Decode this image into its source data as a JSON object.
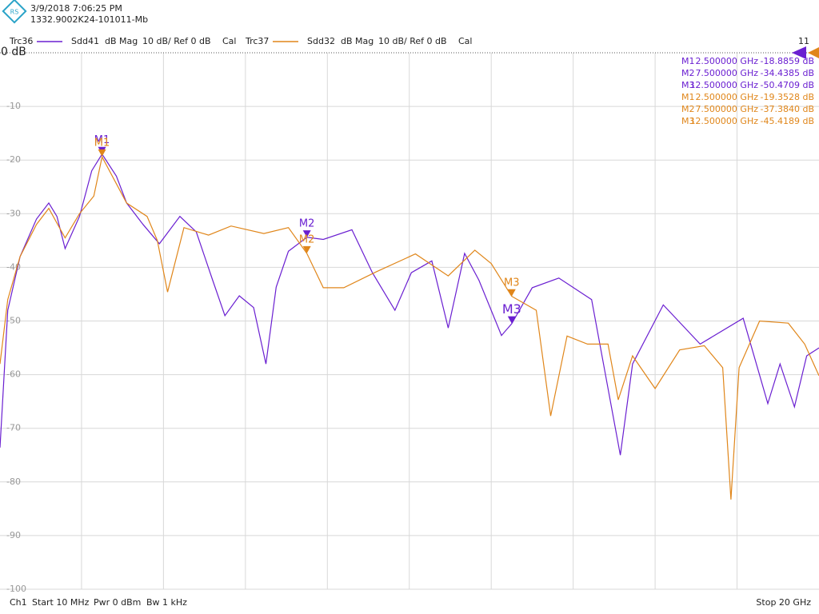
{
  "header": {
    "timestamp": "3/9/2018 7:06:25 PM",
    "device_id": "1332.9002K24-101011-Mb",
    "channel_count": "11"
  },
  "chart_data": {
    "type": "line",
    "xlim": [
      0.01,
      20
    ],
    "xticks": [
      2,
      4,
      6,
      8,
      10,
      12,
      14,
      16,
      18
    ],
    "ylim": [
      -100,
      0
    ],
    "yticks": [
      {
        "value": 0,
        "label": "0 dB"
      },
      -10,
      -20,
      -30,
      -40,
      -50,
      -60,
      -70,
      -80,
      -90,
      -100
    ],
    "grid": true,
    "series": [
      {
        "trace": "Trc36",
        "name": "Sdd41",
        "format": "dB Mag",
        "scale": "10 dB/ Ref 0 dB",
        "cal": "Cal",
        "color": "#6a1fd1",
        "x": [
          0.01,
          0.2,
          0.5,
          0.9,
          1.2,
          1.4,
          1.6,
          1.95,
          2.25,
          2.5,
          2.85,
          3.1,
          3.5,
          3.9,
          4.4,
          4.8,
          5.2,
          5.5,
          5.85,
          6.2,
          6.5,
          6.75,
          7.05,
          7.5,
          7.9,
          8.6,
          9.1,
          9.65,
          10.05,
          10.55,
          10.95,
          11.35,
          11.7,
          12.25,
          12.5,
          13,
          13.65,
          14.45,
          15.15,
          15.45,
          16.2,
          17.1,
          18.15,
          18.75,
          19.05,
          19.4,
          19.7,
          20
        ],
        "values": [
          -73.6,
          -48,
          -38,
          -31,
          -28,
          -30.5,
          -36.5,
          -30.5,
          -22,
          -18.9,
          -23,
          -28,
          -32,
          -35.6,
          -30.5,
          -33.4,
          -42.4,
          -49,
          -45.3,
          -47.5,
          -58,
          -43.7,
          -37,
          -34.4,
          -34.8,
          -33,
          -41,
          -48,
          -41,
          -38.8,
          -51.3,
          -37.4,
          -42.4,
          -52.7,
          -50.5,
          -43.8,
          -42,
          -46,
          -75,
          -58,
          -47,
          -54.3,
          -49.5,
          -65.4,
          -58,
          -66,
          -56.5,
          -55
        ],
        "markers": [
          {
            "name": "M1",
            "x": 2.5,
            "y": -18.8859,
            "x_label": "2.500000 GHz",
            "y_label": "-18.8859 dB"
          },
          {
            "name": "M2",
            "x": 7.5,
            "y": -34.4385,
            "x_label": "7.500000 GHz",
            "y_label": "-34.4385 dB"
          },
          {
            "name": "M3",
            "x": 12.5,
            "y": -50.4709,
            "x_label": "12.500000 GHz",
            "y_label": "-50.4709 dB"
          }
        ]
      },
      {
        "trace": "Trc37",
        "name": "Sdd32",
        "format": "dB Mag",
        "scale": "10 dB/ Ref 0 dB",
        "cal": "Cal",
        "color": "#e0861a",
        "x": [
          0.01,
          0.2,
          0.5,
          0.9,
          1.2,
          1.6,
          1.95,
          2.3,
          2.5,
          3.1,
          3.6,
          3.85,
          4.1,
          4.5,
          5.1,
          5.65,
          6.45,
          7.05,
          7.5,
          7.9,
          8.4,
          9.2,
          10.15,
          10.95,
          11.6,
          12,
          12.5,
          13.1,
          13.45,
          13.85,
          14.35,
          14.85,
          15.1,
          15.45,
          16,
          16.6,
          17.2,
          17.65,
          17.85,
          18.05,
          18.55,
          19.25,
          19.65,
          20
        ],
        "values": [
          -58,
          -46,
          -38,
          -32,
          -29,
          -34.5,
          -30,
          -26.7,
          -19.4,
          -28,
          -30.5,
          -35,
          -44.6,
          -32.6,
          -34,
          -32.3,
          -33.7,
          -32.6,
          -37.4,
          -43.8,
          -43.8,
          -40.8,
          -37.5,
          -41.6,
          -36.8,
          -39.3,
          -45.4,
          -48,
          -67.7,
          -52.8,
          -54.3,
          -54.3,
          -64.7,
          -56.5,
          -62.6,
          -55.4,
          -54.6,
          -58.7,
          -83.3,
          -58.7,
          -50,
          -50.4,
          -54.3,
          -60.2
        ],
        "markers": [
          {
            "name": "M1",
            "x": 2.5,
            "y": -19.3528,
            "x_label": "2.500000 GHz",
            "y_label": "-19.3528 dB"
          },
          {
            "name": "M2",
            "x": 7.5,
            "y": -37.384,
            "x_label": "7.500000 GHz",
            "y_label": "-37.3840 dB"
          },
          {
            "name": "M3",
            "x": 12.5,
            "y": -45.4189,
            "x_label": "12.500000 GHz",
            "y_label": "-45.4189 dB"
          }
        ]
      }
    ]
  },
  "footer": {
    "channel": "Ch1",
    "start": "Start  10 MHz",
    "power": "Pwr  0 dBm",
    "bandwidth": "Bw  1 kHz",
    "stop": "Stop  20 GHz"
  }
}
